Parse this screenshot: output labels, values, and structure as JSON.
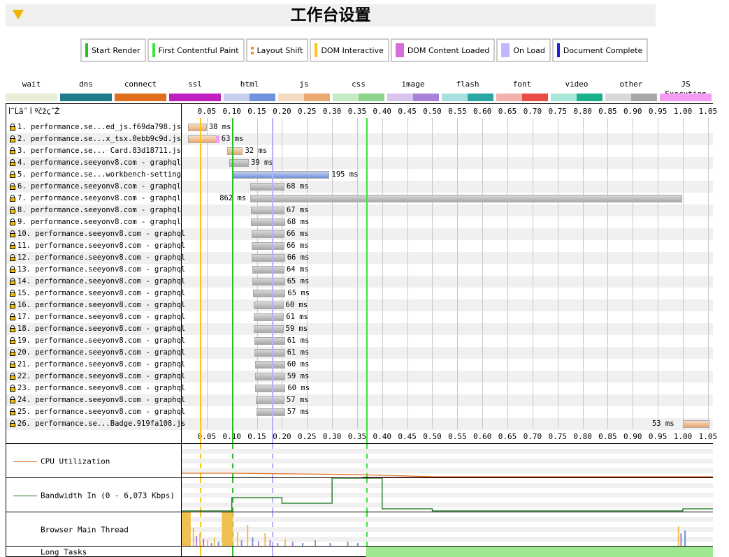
{
  "header": {
    "title": "工作台设置"
  },
  "milestones_legend": [
    {
      "label": "Start Render",
      "color": "#28c028",
      "kind": "bar"
    },
    {
      "label": "First Contentful Paint",
      "color": "#39e639",
      "kind": "bar"
    },
    {
      "label": "Layout Shift",
      "color": "#ff8c28",
      "kind": "dots"
    },
    {
      "label": "DOM Interactive",
      "color": "#ffc419",
      "kind": "bar"
    },
    {
      "label": "DOM Content Loaded",
      "color": "#d670d6",
      "kind": "box"
    },
    {
      "label": "On Load",
      "color": "#c0b8ff",
      "kind": "box"
    },
    {
      "label": "Document Complete",
      "color": "#2020e0",
      "kind": "bar"
    }
  ],
  "resource_types": [
    {
      "label": "wait",
      "colors": [
        "#e8eed8",
        "#e8eed8"
      ]
    },
    {
      "label": "dns",
      "colors": [
        "#1f7a8a",
        "#1f7a8a"
      ]
    },
    {
      "label": "connect",
      "colors": [
        "#e07020",
        "#e07020"
      ]
    },
    {
      "label": "ssl",
      "colors": [
        "#c020c0",
        "#c020c0"
      ]
    },
    {
      "label": "html",
      "colors": [
        "#c4d0ec",
        "#6f92da"
      ]
    },
    {
      "label": "js",
      "colors": [
        "#f4dcc4",
        "#eba870"
      ]
    },
    {
      "label": "css",
      "colors": [
        "#c4ecc4",
        "#8cd48c"
      ]
    },
    {
      "label": "image",
      "colors": [
        "#d8c4ec",
        "#a882d8"
      ]
    },
    {
      "label": "flash",
      "colors": [
        "#a8e0e0",
        "#2ca5a5"
      ]
    },
    {
      "label": "font",
      "colors": [
        "#f4b0ac",
        "#e84c44"
      ]
    },
    {
      "label": "video",
      "colors": [
        "#a8e8d8",
        "#1ab08c"
      ]
    },
    {
      "label": "other",
      "colors": [
        "#d8d8d8",
        "#a8a8a8"
      ]
    },
    {
      "label": "JS Execution",
      "colors": [
        "#f49cf4",
        "#f49cf4"
      ]
    }
  ],
  "waterfall": {
    "column_header": "Í˜Ĺä˝ Í ºčžç˝Ž",
    "axis": {
      "min": 0,
      "max": 1.06,
      "ticks": [
        "0.05",
        "0.10",
        "0.15",
        "0.20",
        "0.25",
        "0.30",
        "0.35",
        "0.40",
        "0.45",
        "0.50",
        "0.55",
        "0.60",
        "0.65",
        "0.70",
        "0.75",
        "0.80",
        "0.85",
        "0.90",
        "0.95",
        "1.00",
        "1.05"
      ]
    },
    "milestones": [
      {
        "name": "dom-interactive",
        "time": 0.036,
        "color": "#ffc419"
      },
      {
        "name": "start-render",
        "time": 0.1,
        "color": "#28c028"
      },
      {
        "name": "on-load",
        "time": 0.18,
        "color": "#b8b0ff"
      },
      {
        "name": "first-contentful-paint",
        "time": 0.368,
        "color": "#39e639"
      }
    ],
    "requests": [
      {
        "label": " 1. performance.se...ed_js.f69da798.js",
        "start": 0.012,
        "dur": "38 ms",
        "ms": 38,
        "type": "js"
      },
      {
        "label": " 2. performance.se...x_tsx.0ebb9c9d.js",
        "start": 0.012,
        "dur": "63 ms",
        "ms": 63,
        "type": "js"
      },
      {
        "label": " 3. performance.se... Card.83d18711.js",
        "start": 0.09,
        "dur": "32 ms",
        "ms": 32,
        "type": "js"
      },
      {
        "label": " 4. performance.seeyonv8.com - graphql",
        "start": 0.095,
        "dur": "39 ms",
        "ms": 39,
        "type": "other"
      },
      {
        "label": " 5. performance.se...workbench-setting",
        "start": 0.1,
        "dur": "195 ms",
        "ms": 195,
        "type": "html"
      },
      {
        "label": " 6. performance.seeyonv8.com - graphql",
        "start": 0.137,
        "dur": "68 ms",
        "ms": 68,
        "type": "other"
      },
      {
        "label": " 7. performance.seeyonv8.com - graphql",
        "start": 0.137,
        "dur": "862 ms",
        "ms": 862,
        "type": "other"
      },
      {
        "label": " 8. performance.seeyonv8.com - graphql",
        "start": 0.138,
        "dur": "67 ms",
        "ms": 67,
        "type": "other"
      },
      {
        "label": " 9. performance.seeyonv8.com - graphql",
        "start": 0.138,
        "dur": "68 ms",
        "ms": 68,
        "type": "other"
      },
      {
        "label": "10. performance.seeyonv8.com - graphql",
        "start": 0.139,
        "dur": "66 ms",
        "ms": 66,
        "type": "other"
      },
      {
        "label": "11. performance.seeyonv8.com - graphql",
        "start": 0.139,
        "dur": "66 ms",
        "ms": 66,
        "type": "other"
      },
      {
        "label": "12. performance.seeyonv8.com - graphql",
        "start": 0.14,
        "dur": "66 ms",
        "ms": 66,
        "type": "other"
      },
      {
        "label": "13. performance.seeyonv8.com - graphql",
        "start": 0.141,
        "dur": "64 ms",
        "ms": 64,
        "type": "other"
      },
      {
        "label": "14. performance.seeyonv8.com - graphql",
        "start": 0.141,
        "dur": "65 ms",
        "ms": 65,
        "type": "other"
      },
      {
        "label": "15. performance.seeyonv8.com - graphql",
        "start": 0.142,
        "dur": "65 ms",
        "ms": 65,
        "type": "other"
      },
      {
        "label": "16. performance.seeyonv8.com - graphql",
        "start": 0.143,
        "dur": "60 ms",
        "ms": 60,
        "type": "other"
      },
      {
        "label": "17. performance.seeyonv8.com - graphql",
        "start": 0.143,
        "dur": "61 ms",
        "ms": 61,
        "type": "other"
      },
      {
        "label": "18. performance.seeyonv8.com - graphql",
        "start": 0.144,
        "dur": "59 ms",
        "ms": 59,
        "type": "other"
      },
      {
        "label": "19. performance.seeyonv8.com - graphql",
        "start": 0.145,
        "dur": "61 ms",
        "ms": 61,
        "type": "other"
      },
      {
        "label": "20. performance.seeyonv8.com - graphql",
        "start": 0.145,
        "dur": "61 ms",
        "ms": 61,
        "type": "other"
      },
      {
        "label": "21. performance.seeyonv8.com - graphql",
        "start": 0.146,
        "dur": "60 ms",
        "ms": 60,
        "type": "other"
      },
      {
        "label": "22. performance.seeyonv8.com - graphql",
        "start": 0.147,
        "dur": "59 ms",
        "ms": 59,
        "type": "other"
      },
      {
        "label": "23. performance.seeyonv8.com - graphql",
        "start": 0.147,
        "dur": "60 ms",
        "ms": 60,
        "type": "other"
      },
      {
        "label": "24. performance.seeyonv8.com - graphql",
        "start": 0.148,
        "dur": "57 ms",
        "ms": 57,
        "type": "other"
      },
      {
        "label": "25. performance.seeyonv8.com - graphql",
        "start": 0.149,
        "dur": "57 ms",
        "ms": 57,
        "type": "other"
      },
      {
        "label": "26. performance.se...Badge.919fa108.js",
        "start": 1.0,
        "dur": "53 ms",
        "ms": 53,
        "type": "js"
      }
    ]
  },
  "graphs": {
    "cpu": {
      "label": "CPU Utilization",
      "color": "#e07020"
    },
    "bandwidth": {
      "label": "Bandwidth In (0 - 6,073 Kbps)",
      "color": "#107010"
    },
    "main_thread": {
      "label": "Browser Main Thread"
    },
    "long_tasks": {
      "label": "Long Tasks",
      "color": "#a0e890"
    }
  }
}
